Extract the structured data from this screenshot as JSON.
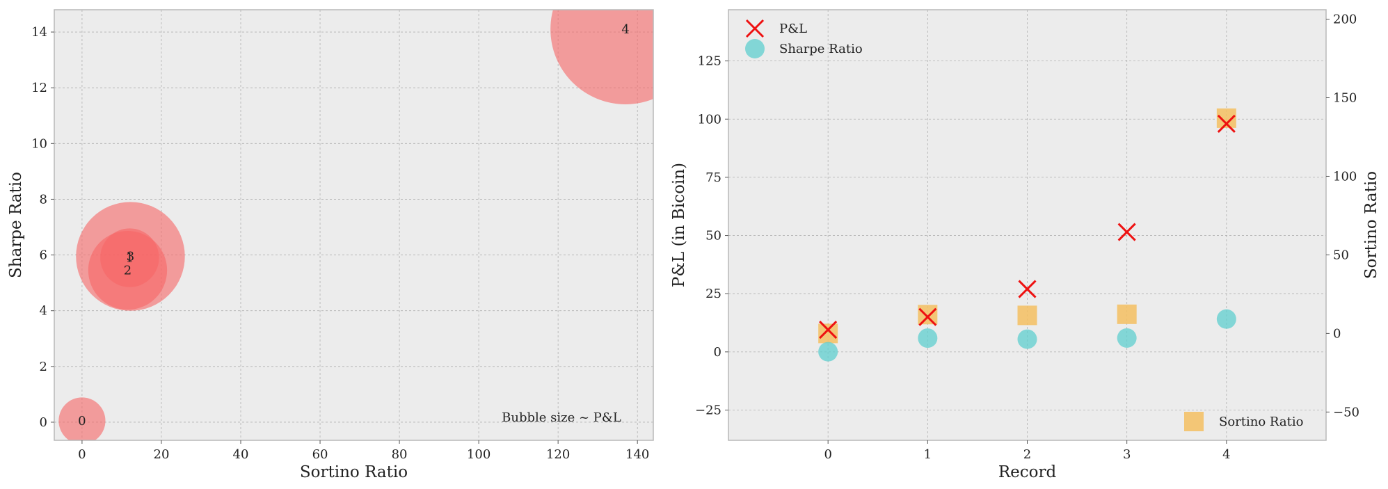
{
  "chart_data": [
    {
      "type": "scatter",
      "subtype": "bubble",
      "xlabel": "Sortino Ratio",
      "ylabel": "Sharpe Ratio",
      "xlim": [
        -7,
        144
      ],
      "ylim": [
        -0.65,
        14.8
      ],
      "xticks": [
        0,
        20,
        40,
        60,
        80,
        100,
        120,
        140
      ],
      "yticks": [
        0,
        2,
        4,
        6,
        8,
        10,
        12,
        14
      ],
      "grid": true,
      "bubble_color": "#f66666",
      "annotation": "Bubble size ~ P&L",
      "points": [
        {
          "label": "0",
          "x": 0.0,
          "y": 0.05,
          "pnl": 9.5
        },
        {
          "label": "1",
          "x": 12.0,
          "y": 5.9,
          "pnl": 15.0
        },
        {
          "label": "2",
          "x": 11.5,
          "y": 5.45,
          "pnl": 27.0
        },
        {
          "label": "3",
          "x": 12.2,
          "y": 5.95,
          "pnl": 51.5
        },
        {
          "label": "4",
          "x": 137.0,
          "y": 14.1,
          "pnl": 98.0
        }
      ]
    },
    {
      "type": "scatter",
      "xlabel": "Record",
      "ylabel": "P&L (in Bicoin)",
      "y2label": "Sortino Ratio",
      "categories": [
        "0",
        "1",
        "2",
        "3",
        "4"
      ],
      "xlim": [
        -1,
        5
      ],
      "ylim": [
        -38,
        147
      ],
      "y2lim": [
        -68,
        206
      ],
      "yticks": [
        -25,
        0,
        25,
        50,
        75,
        100,
        125
      ],
      "y2ticks": [
        -50,
        0,
        50,
        100,
        150,
        200
      ],
      "grid": true,
      "legend_left": "top-left",
      "legend_right": "bottom-right",
      "series": [
        {
          "name": "P&L",
          "axis": "left",
          "marker": "x",
          "color": "#ee1111",
          "values": [
            9.5,
            15.0,
            27.0,
            51.5,
            98.0
          ]
        },
        {
          "name": "Sharpe Ratio",
          "axis": "left",
          "marker": "circle",
          "color": "#5fcfcf",
          "values": [
            0.05,
            5.9,
            5.45,
            5.95,
            14.1
          ]
        },
        {
          "name": "Sortino Ratio",
          "axis": "right",
          "marker": "square",
          "color": "#f5c062",
          "values": [
            0.0,
            12.0,
            11.5,
            12.2,
            137.0
          ]
        }
      ]
    }
  ]
}
